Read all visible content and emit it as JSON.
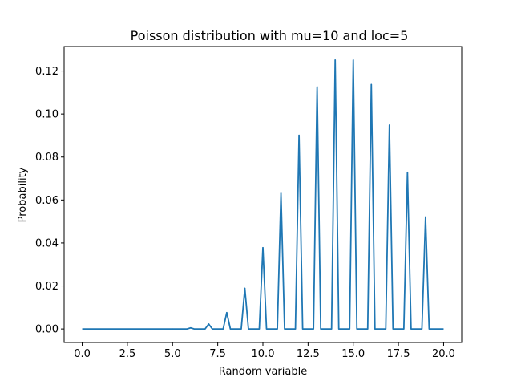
{
  "chart_data": {
    "type": "line",
    "title": "Poisson distribution with mu=10 and loc=5",
    "xlabel": "Random variable",
    "ylabel": "Probability",
    "xlim": [
      -1,
      21
    ],
    "ylim": [
      -0.0063,
      0.1314
    ],
    "x_ticks": [
      0.0,
      2.5,
      5.0,
      7.5,
      10.0,
      12.5,
      15.0,
      17.5,
      20.0
    ],
    "x_tick_labels": [
      "0.0",
      "2.5",
      "5.0",
      "7.5",
      "10.0",
      "12.5",
      "15.0",
      "17.5",
      "20.0"
    ],
    "y_ticks": [
      0.0,
      0.02,
      0.04,
      0.06,
      0.08,
      0.1,
      0.12
    ],
    "y_tick_labels": [
      "0.00",
      "0.02",
      "0.04",
      "0.06",
      "0.08",
      "0.10",
      "0.12"
    ],
    "grid": false,
    "line_color": "#1f77b4",
    "x_range": [
      0,
      20
    ],
    "sample_step": 0.2,
    "series": [
      {
        "spikes": [
          {
            "x": 5,
            "y": 0.0
          },
          {
            "x": 6,
            "y": 0.0005
          },
          {
            "x": 7,
            "y": 0.0023
          },
          {
            "x": 8,
            "y": 0.0076
          },
          {
            "x": 9,
            "y": 0.0189
          },
          {
            "x": 10,
            "y": 0.0378
          },
          {
            "x": 11,
            "y": 0.0631
          },
          {
            "x": 12,
            "y": 0.0901
          },
          {
            "x": 13,
            "y": 0.1126
          },
          {
            "x": 14,
            "y": 0.1251
          },
          {
            "x": 15,
            "y": 0.1251
          },
          {
            "x": 16,
            "y": 0.1137
          },
          {
            "x": 17,
            "y": 0.0948
          },
          {
            "x": 18,
            "y": 0.0729
          },
          {
            "x": 19,
            "y": 0.0521
          }
        ]
      }
    ]
  }
}
